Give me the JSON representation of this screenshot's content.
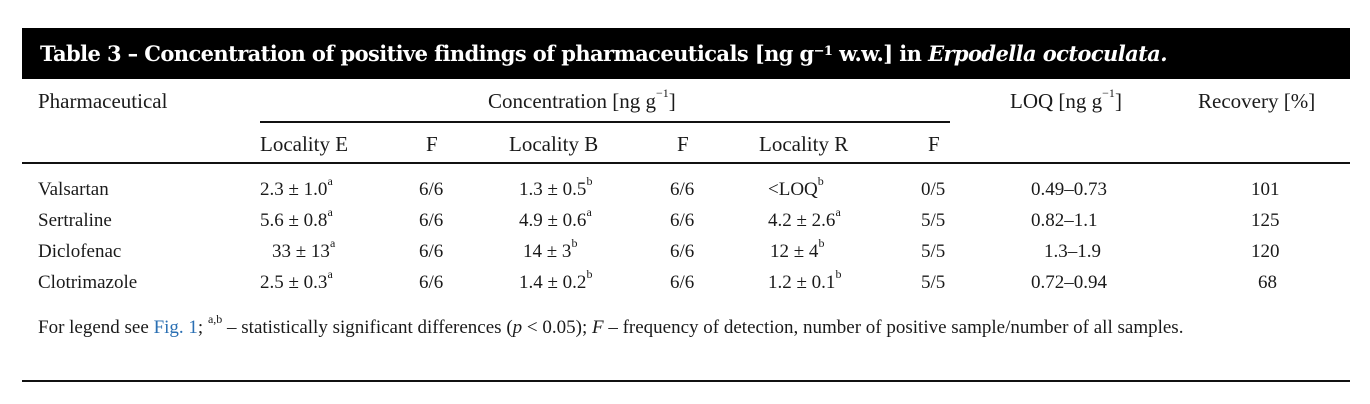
{
  "table": {
    "title_prefix": "Table 3 – Concentration of positive findings of pharmaceuticals [ng g",
    "title_exp": "−1",
    "title_mid": " w.w.] in ",
    "title_species": "Erpodella octoculata.",
    "header": {
      "pharmaceutical": "Pharmaceutical",
      "concentration_prefix": "Concentration [ng g",
      "concentration_exp": "−1",
      "concentration_suffix": "]",
      "loq_prefix": "LOQ [ng g",
      "loq_exp": "−1",
      "loq_suffix": "]",
      "recovery": "Recovery [%]",
      "locality_e": "Locality E",
      "locality_b": "Locality B",
      "locality_r": "Locality R",
      "f": "F"
    },
    "rows": [
      {
        "name": "Valsartan",
        "e": {
          "value": "2.3 ± 1.0",
          "sup": "a"
        },
        "e_f": "6/6",
        "b": {
          "value": "1.3 ± 0.5",
          "sup": "b"
        },
        "b_f": "6/6",
        "r": {
          "value": "<LOQ",
          "sup": "b"
        },
        "r_f": "0/5",
        "loq": "0.49–0.73",
        "recovery": "101"
      },
      {
        "name": "Sertraline",
        "e": {
          "value": "5.6 ± 0.8",
          "sup": "a"
        },
        "e_f": "6/6",
        "b": {
          "value": "4.9 ± 0.6",
          "sup": "a"
        },
        "b_f": "6/6",
        "r": {
          "value": "4.2 ± 2.6",
          "sup": "a"
        },
        "r_f": "5/5",
        "loq": "0.82–1.1",
        "recovery": "125"
      },
      {
        "name": "Diclofenac",
        "e": {
          "value": "33 ± 13",
          "sup": "a"
        },
        "e_f": "6/6",
        "b": {
          "value": "14 ± 3",
          "sup": "b"
        },
        "b_f": "6/6",
        "r": {
          "value": "12 ± 4",
          "sup": "b"
        },
        "r_f": "5/5",
        "loq": "1.3–1.9",
        "recovery": "120"
      },
      {
        "name": "Clotrimazole",
        "e": {
          "value": "2.5 ± 0.3",
          "sup": "a"
        },
        "e_f": "6/6",
        "b": {
          "value": "1.4 ± 0.2",
          "sup": "b"
        },
        "b_f": "6/6",
        "r": {
          "value": "1.2 ± 0.1",
          "sup": "b"
        },
        "r_f": "5/5",
        "loq": "0.72–0.94",
        "recovery": "68"
      }
    ],
    "footnote": {
      "prefix": "For legend see ",
      "fig_link": "Fig. 1",
      "sep": "; ",
      "sup": "a,b",
      "text1": " – statistically significant differences (",
      "p_italic": "p",
      "text2": " < 0.05); ",
      "f_italic": "F",
      "text3": " – frequency of detection, number of positive sample/number of all samples."
    }
  }
}
